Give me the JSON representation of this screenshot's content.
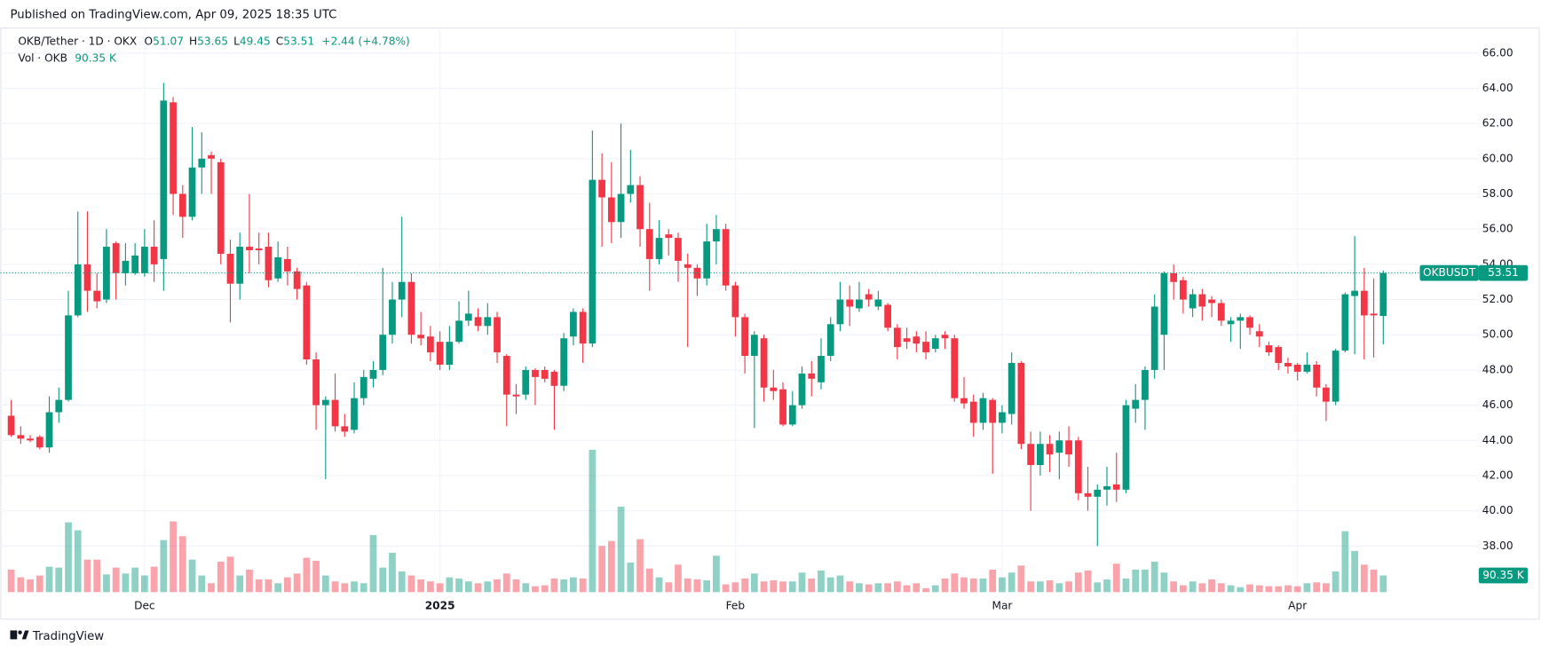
{
  "published": "Published on TradingView.com, Apr 09, 2025 18:35 UTC",
  "footer": "TradingView",
  "chart_data": {
    "type": "candlestick",
    "symbol": "OKB/Tether · 1D · OKX",
    "symbol_code": "OKBUSDT",
    "ohlc_letters": [
      "O",
      "H",
      "L",
      "C"
    ],
    "change": "+2.44 (+4.78%)",
    "volume_title": "Vol · OKB",
    "volume_label": "90.35 K",
    "up_color": "#089981",
    "down_color": "#f23645",
    "grid": true,
    "ylim": [
      35.27,
      67.34
    ],
    "yticks": [
      {
        "value": 38,
        "label": "38.00"
      },
      {
        "value": 40,
        "label": "40.00"
      },
      {
        "value": 42,
        "label": "42.00"
      },
      {
        "value": 44,
        "label": "44.00"
      },
      {
        "value": 46,
        "label": "46.00"
      },
      {
        "value": 48,
        "label": "48.00"
      },
      {
        "value": 50,
        "label": "50.00"
      },
      {
        "value": 52,
        "label": "52.00"
      },
      {
        "value": 54,
        "label": "54.00"
      },
      {
        "value": 56,
        "label": "56.00"
      },
      {
        "value": 58,
        "label": "58.00"
      },
      {
        "value": 60,
        "label": "60.00"
      },
      {
        "value": 62,
        "label": "62.00"
      },
      {
        "value": 64,
        "label": "64.00"
      },
      {
        "value": 66,
        "label": "66.00"
      }
    ],
    "xticks": [
      {
        "value": 14,
        "label": "Dec"
      },
      {
        "value": 45,
        "label": "2025"
      },
      {
        "value": 76,
        "label": "Feb"
      },
      {
        "value": 104,
        "label": "Mar"
      },
      {
        "value": 135,
        "label": "Apr"
      }
    ],
    "vol_ylim": [
      0,
      1000
    ],
    "open": [
      45.4,
      44.3,
      44.1,
      44.2,
      43.6,
      45.6,
      46.3,
      51.1,
      54.0,
      52.5,
      52.0,
      55.2,
      53.5,
      53.5,
      53.5,
      55.0,
      54.3,
      63.2,
      58.0,
      56.7,
      59.5,
      60.2,
      59.8,
      54.6,
      52.9,
      55.0,
      54.9,
      55.0,
      53.2,
      54.3,
      53.6,
      52.8,
      48.6,
      46.0,
      46.3,
      44.8,
      44.6,
      46.4,
      47.5,
      48.0,
      50.0,
      52.0,
      53.0,
      50.0,
      49.9,
      49.6,
      48.3,
      49.6,
      50.8,
      51.0,
      50.5,
      51.0,
      48.8,
      46.6,
      46.6,
      48.0,
      48.0,
      47.9,
      47.1,
      49.9,
      51.3,
      49.5,
      58.8,
      57.8,
      56.4,
      58.0,
      58.5,
      56.0,
      54.3,
      55.7,
      55.5,
      54.0,
      53.8,
      53.2,
      55.3,
      56.0,
      52.8,
      51.0,
      48.8,
      49.8,
      47.0,
      46.9,
      44.9,
      46.0,
      47.8,
      47.3,
      48.8,
      50.6,
      52.0,
      51.5,
      52.3,
      51.6,
      51.7,
      50.4,
      49.8,
      49.9,
      49.6,
      49.2,
      50.0,
      49.8,
      46.4,
      46.2,
      45.0,
      46.3,
      45.0,
      45.5,
      48.4,
      43.8,
      42.6,
      43.8,
      43.3,
      44.0,
      44.0,
      41.0,
      40.8,
      41.2,
      41.5,
      41.2,
      45.8,
      46.3,
      48.0,
      50.0,
      53.5,
      53.1,
      51.5,
      52.3,
      52.0,
      51.8,
      50.6,
      50.8,
      51.0,
      50.2,
      49.4,
      49.3,
      48.4,
      48.3,
      47.9,
      48.3,
      47.0,
      46.2,
      49.1,
      52.2,
      52.5,
      51.2,
      51.07
    ],
    "high": [
      46.3,
      44.8,
      44.3,
      44.3,
      46.5,
      47.0,
      52.5,
      57.0,
      57.0,
      53.5,
      56.0,
      55.3,
      55.2,
      55.2,
      56.0,
      56.5,
      64.3,
      63.5,
      58.5,
      61.8,
      61.5,
      60.4,
      60.0,
      55.4,
      55.8,
      58.0,
      55.8,
      55.8,
      55.3,
      55.0,
      53.8,
      53.0,
      49.0,
      46.5,
      47.8,
      45.5,
      47.3,
      48.0,
      48.5,
      53.8,
      53.0,
      56.7,
      53.5,
      51.3,
      50.5,
      50.2,
      50.5,
      51.9,
      52.5,
      51.5,
      51.8,
      51.3,
      48.9,
      47.2,
      48.2,
      48.1,
      48.2,
      48.0,
      50.1,
      51.5,
      51.5,
      61.6,
      60.3,
      59.8,
      62.0,
      60.5,
      59.0,
      57.5,
      56.5,
      56.0,
      55.8,
      54.6,
      54.0,
      56.3,
      56.8,
      56.3,
      53.0,
      51.2,
      50.2,
      50.0,
      48.0,
      47.3,
      46.8,
      48.2,
      48.5,
      49.8,
      51.0,
      53.0,
      52.8,
      53.0,
      52.6,
      52.5,
      51.8,
      50.6,
      50.4,
      50.2,
      50.2,
      50.0,
      50.2,
      50.0,
      47.6,
      46.6,
      46.7,
      46.4,
      46.0,
      49.0,
      48.5,
      44.5,
      44.5,
      44.3,
      44.5,
      44.8,
      44.2,
      42.5,
      41.5,
      42.5,
      43.3,
      46.3,
      47.2,
      48.2,
      52.3,
      53.6,
      54.0,
      53.3,
      52.6,
      52.6,
      52.2,
      52.0,
      51.0,
      51.2,
      51.1,
      50.6,
      49.6,
      49.4,
      48.7,
      48.4,
      49.0,
      48.5,
      47.2,
      49.2,
      52.4,
      55.6,
      53.8,
      53.2,
      53.65
    ],
    "low": [
      44.2,
      43.8,
      43.9,
      43.5,
      43.3,
      45.0,
      46.2,
      51.0,
      51.3,
      51.5,
      51.8,
      52.0,
      52.8,
      53.4,
      53.3,
      53.0,
      52.5,
      56.8,
      55.5,
      56.5,
      58.0,
      58.0,
      54.0,
      50.7,
      52.0,
      53.5,
      54.0,
      52.7,
      53.0,
      52.8,
      52.0,
      48.3,
      44.6,
      41.8,
      44.5,
      44.2,
      44.4,
      46.0,
      47.0,
      47.7,
      49.5,
      51.0,
      49.5,
      49.4,
      48.5,
      48.0,
      48.0,
      49.5,
      50.5,
      50.2,
      50.0,
      48.4,
      44.8,
      45.5,
      46.3,
      46.0,
      47.3,
      44.6,
      46.8,
      49.4,
      48.4,
      49.3,
      55.0,
      55.2,
      55.5,
      57.5,
      55.0,
      52.5,
      54.0,
      54.5,
      53.0,
      49.3,
      52.2,
      52.8,
      54.0,
      52.5,
      49.9,
      47.8,
      44.7,
      46.2,
      46.3,
      44.8,
      44.8,
      45.8,
      46.5,
      46.9,
      48.5,
      50.2,
      50.5,
      51.3,
      51.6,
      51.4,
      50.2,
      48.6,
      49.2,
      49.0,
      48.6,
      49.0,
      49.2,
      46.2,
      45.8,
      44.2,
      44.6,
      42.1,
      44.4,
      44.9,
      43.5,
      40.0,
      42.0,
      42.2,
      41.8,
      42.5,
      40.6,
      40.0,
      38.0,
      40.3,
      40.5,
      41.0,
      45.0,
      44.6,
      47.5,
      48.0,
      52.0,
      51.2,
      51.0,
      50.8,
      51.0,
      50.5,
      49.6,
      49.2,
      50.0,
      49.3,
      48.8,
      48.0,
      47.8,
      47.4,
      47.8,
      46.5,
      45.1,
      46.0,
      49.0,
      48.9,
      48.6,
      48.7,
      49.45
    ],
    "close": [
      44.3,
      44.1,
      44.0,
      43.6,
      45.6,
      46.3,
      51.1,
      54.0,
      52.5,
      51.9,
      55.0,
      53.5,
      54.2,
      54.5,
      55.0,
      54.0,
      63.3,
      58.0,
      56.7,
      59.5,
      60.0,
      60.0,
      54.6,
      52.9,
      55.0,
      54.8,
      54.8,
      53.1,
      54.4,
      53.6,
      52.6,
      48.6,
      46.0,
      46.3,
      44.8,
      44.5,
      46.4,
      47.6,
      48.0,
      50.0,
      52.0,
      53.0,
      50.0,
      49.8,
      49.0,
      48.3,
      49.6,
      50.8,
      51.2,
      50.5,
      51.0,
      49.0,
      46.6,
      46.5,
      48.0,
      47.6,
      47.5,
      47.1,
      49.8,
      51.3,
      49.5,
      58.8,
      57.8,
      56.4,
      58.0,
      58.5,
      56.0,
      54.3,
      55.5,
      55.5,
      54.2,
      53.8,
      53.2,
      55.3,
      56.0,
      52.8,
      51.0,
      48.8,
      50.0,
      47.0,
      46.8,
      44.9,
      46.0,
      47.8,
      47.5,
      48.8,
      50.6,
      52.0,
      51.6,
      52.0,
      52.0,
      52.0,
      50.4,
      49.3,
      49.6,
      49.5,
      49.0,
      49.8,
      49.8,
      46.4,
      46.1,
      45.0,
      46.4,
      45.0,
      45.6,
      48.4,
      43.8,
      42.6,
      43.8,
      43.2,
      44.0,
      43.2,
      41.0,
      40.8,
      41.2,
      41.4,
      41.2,
      46.0,
      46.3,
      48.0,
      51.6,
      53.5,
      53.0,
      52.0,
      52.3,
      51.6,
      51.8,
      50.8,
      50.8,
      51.0,
      50.4,
      49.9,
      49.0,
      48.4,
      48.2,
      47.9,
      48.3,
      47.0,
      46.2,
      49.1,
      52.3,
      52.5,
      51.1,
      51.1,
      53.51
    ],
    "volume": [
      122,
      80,
      69,
      90,
      138,
      133,
      378,
      335,
      176,
      176,
      96,
      133,
      101,
      133,
      90,
      138,
      282,
      383,
      303,
      176,
      90,
      48,
      165,
      192,
      90,
      122,
      69,
      69,
      48,
      80,
      101,
      186,
      170,
      90,
      58,
      48,
      58,
      48,
      309,
      133,
      213,
      112,
      90,
      69,
      58,
      48,
      80,
      74,
      58,
      48,
      58,
      69,
      101,
      69,
      48,
      32,
      37,
      74,
      69,
      80,
      74,
      771,
      250,
      277,
      463,
      160,
      287,
      128,
      80,
      53,
      149,
      74,
      69,
      64,
      197,
      42,
      53,
      74,
      101,
      58,
      64,
      58,
      58,
      106,
      74,
      117,
      80,
      90,
      58,
      48,
      42,
      48,
      48,
      58,
      37,
      48,
      21,
      37,
      74,
      101,
      80,
      74,
      74,
      122,
      80,
      106,
      144,
      58,
      58,
      64,
      48,
      58,
      106,
      117,
      53,
      69,
      154,
      74,
      122,
      122,
      165,
      106,
      58,
      37,
      58,
      48,
      69,
      48,
      37,
      27,
      42,
      37,
      32,
      32,
      37,
      32,
      48,
      53,
      48,
      112,
      330,
      223,
      149,
      122,
      90.35
    ]
  }
}
